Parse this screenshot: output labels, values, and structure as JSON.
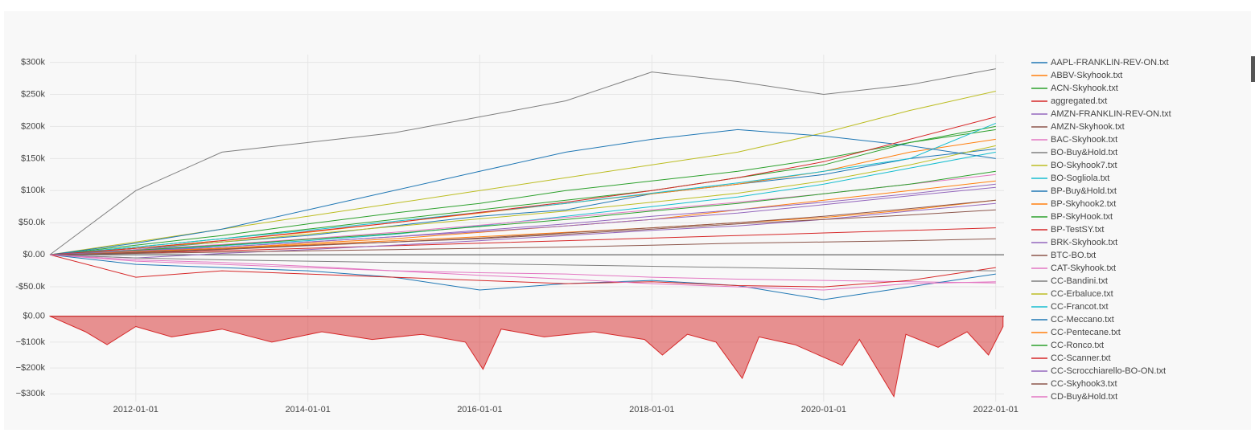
{
  "chart_data": [
    {
      "type": "line",
      "x": [
        "2011-01-01",
        "2012-01-01",
        "2013-01-01",
        "2014-01-01",
        "2015-01-01",
        "2016-01-01",
        "2017-01-01",
        "2018-01-01",
        "2019-01-01",
        "2020-01-01",
        "2021-01-01",
        "2022-01-01"
      ],
      "xlim": [
        "2011-01-01",
        "2022-02-05"
      ],
      "xticks": [
        "2012-01-01",
        "2014-01-01",
        "2016-01-01",
        "2018-01-01",
        "2020-01-01",
        "2022-01-01"
      ],
      "ylim": [
        -85000,
        312000
      ],
      "yticks": [
        {
          "value": -50000,
          "label": "-$50.0k"
        },
        {
          "value": 0,
          "label": "$0.00"
        },
        {
          "value": 50000,
          "label": "$50.0k"
        },
        {
          "value": 100000,
          "label": "$100k"
        },
        {
          "value": 150000,
          "label": "$150k"
        },
        {
          "value": 200000,
          "label": "$200k"
        },
        {
          "value": 250000,
          "label": "$250k"
        },
        {
          "value": 300000,
          "label": "$300k"
        }
      ],
      "grid": true,
      "legend": "right",
      "series": [
        {
          "name": "AAPL-FRANKLIN-REV-ON.txt",
          "color": "#1f77b4",
          "values": [
            0,
            8000,
            20000,
            30000,
            45000,
            60000,
            70000,
            95000,
            110000,
            125000,
            150000,
            165000
          ]
        },
        {
          "name": "ABBV-Skyhook.txt",
          "color": "#ff7f0e",
          "values": [
            0,
            5000,
            10000,
            18000,
            25000,
            35000,
            45000,
            55000,
            70000,
            85000,
            100000,
            115000
          ]
        },
        {
          "name": "ACN-Skyhook.txt",
          "color": "#2ca02c",
          "values": [
            0,
            12000,
            25000,
            40000,
            55000,
            70000,
            85000,
            100000,
            120000,
            140000,
            175000,
            200000
          ]
        },
        {
          "name": "aggregated.txt",
          "color": "#d62728",
          "values": [
            0,
            3000,
            6000,
            10000,
            14000,
            18000,
            22000,
            26000,
            30000,
            34000,
            38000,
            42000
          ]
        },
        {
          "name": "AMZN-FRANKLIN-REV-ON.txt",
          "color": "#9467bd",
          "values": [
            0,
            -5000,
            2000,
            8000,
            15000,
            22000,
            30000,
            38000,
            45000,
            55000,
            68000,
            80000
          ]
        },
        {
          "name": "AMZN-Skyhook.txt",
          "color": "#8c564b",
          "values": [
            0,
            4000,
            9000,
            15000,
            20000,
            25000,
            32000,
            40000,
            48000,
            55000,
            62000,
            70000
          ]
        },
        {
          "name": "BAC-Skyhook.txt",
          "color": "#e377c2",
          "values": [
            0,
            -10000,
            -15000,
            -20000,
            -25000,
            -28000,
            -30000,
            -35000,
            -38000,
            -40000,
            -42000,
            -44000
          ]
        },
        {
          "name": "BO-Buy&Hold.txt",
          "color": "#7f7f7f",
          "values": [
            0,
            100000,
            160000,
            175000,
            190000,
            215000,
            240000,
            285000,
            270000,
            250000,
            265000,
            290000
          ]
        },
        {
          "name": "BO-Skyhook7.txt",
          "color": "#bcbd22",
          "values": [
            0,
            20000,
            40000,
            60000,
            80000,
            100000,
            120000,
            140000,
            160000,
            190000,
            225000,
            255000
          ]
        },
        {
          "name": "BO-Sogliola.txt",
          "color": "#17becf",
          "values": [
            0,
            6000,
            14000,
            22000,
            32000,
            45000,
            60000,
            75000,
            90000,
            110000,
            135000,
            160000
          ]
        },
        {
          "name": "BP-Buy&Hold.txt",
          "color": "#1f77b4",
          "values": [
            0,
            -15000,
            -20000,
            -25000,
            -35000,
            -55000,
            -45000,
            -40000,
            -48000,
            -70000,
            -50000,
            -30000
          ]
        },
        {
          "name": "BP-Skyhook2.txt",
          "color": "#ff7f0e",
          "values": [
            0,
            10000,
            22000,
            35000,
            50000,
            65000,
            80000,
            95000,
            110000,
            130000,
            160000,
            180000
          ]
        },
        {
          "name": "BP-SkyHook.txt",
          "color": "#2ca02c",
          "values": [
            0,
            15000,
            30000,
            48000,
            65000,
            80000,
            100000,
            115000,
            130000,
            150000,
            175000,
            195000
          ]
        },
        {
          "name": "BP-TestSY.txt",
          "color": "#d62728",
          "values": [
            0,
            -35000,
            -25000,
            -30000,
            -35000,
            -40000,
            -45000,
            -42000,
            -48000,
            -50000,
            -40000,
            -20000
          ]
        },
        {
          "name": "BRK-Skyhook.txt",
          "color": "#9467bd",
          "values": [
            0,
            5000,
            12000,
            20000,
            28000,
            38000,
            48000,
            60000,
            70000,
            82000,
            95000,
            110000
          ]
        },
        {
          "name": "BTC-BO.txt",
          "color": "#8c564b",
          "values": [
            0,
            2000,
            4000,
            6000,
            8000,
            10000,
            12000,
            15000,
            18000,
            20000,
            22000,
            25000
          ]
        },
        {
          "name": "CAT-Skyhook.txt",
          "color": "#e377c2",
          "values": [
            0,
            8000,
            16000,
            25000,
            35000,
            46000,
            58000,
            70000,
            82000,
            95000,
            110000,
            125000
          ]
        },
        {
          "name": "CC-Bandini.txt",
          "color": "#7f7f7f",
          "values": [
            0,
            -5000,
            -8000,
            -10000,
            -12000,
            -14000,
            -16000,
            -18000,
            -20000,
            -22000,
            -24000,
            -25000
          ]
        },
        {
          "name": "CC-Erbaluce.txt",
          "color": "#bcbd22",
          "values": [
            0,
            10000,
            20000,
            32000,
            44000,
            56000,
            68000,
            82000,
            96000,
            115000,
            140000,
            170000
          ]
        },
        {
          "name": "CC-Francot.txt",
          "color": "#17becf",
          "values": [
            0,
            12000,
            25000,
            38000,
            52000,
            66000,
            80000,
            96000,
            112000,
            130000,
            150000,
            205000
          ]
        },
        {
          "name": "CC-Meccano.txt",
          "color": "#1f77b4",
          "values": [
            0,
            18000,
            40000,
            70000,
            100000,
            130000,
            160000,
            180000,
            195000,
            185000,
            170000,
            150000
          ]
        },
        {
          "name": "CC-Pentecane.txt",
          "color": "#ff7f0e",
          "values": [
            0,
            5000,
            10000,
            16000,
            22000,
            28000,
            35000,
            42000,
            50000,
            58000,
            70000,
            85000
          ]
        },
        {
          "name": "CC-Ronco.txt",
          "color": "#2ca02c",
          "values": [
            0,
            7000,
            15000,
            24000,
            33000,
            44000,
            55000,
            68000,
            80000,
            95000,
            110000,
            130000
          ]
        },
        {
          "name": "CC-Scanner.txt",
          "color": "#d62728",
          "values": [
            0,
            10000,
            22000,
            36000,
            50000,
            66000,
            82000,
            100000,
            120000,
            145000,
            180000,
            215000
          ]
        },
        {
          "name": "CC-Scrocchiarello-BO-ON.txt",
          "color": "#9467bd",
          "values": [
            0,
            6000,
            12000,
            20000,
            28000,
            36000,
            45000,
            55000,
            65000,
            78000,
            92000,
            105000
          ]
        },
        {
          "name": "CC-Skyhook3.txt",
          "color": "#8c564b",
          "values": [
            0,
            3000,
            8000,
            14000,
            20000,
            26000,
            34000,
            42000,
            50000,
            60000,
            72000,
            85000
          ]
        },
        {
          "name": "CD-Buy&Hold.txt",
          "color": "#e377c2",
          "values": [
            0,
            -8000,
            -12000,
            -18000,
            -25000,
            -32000,
            -38000,
            -45000,
            -50000,
            -55000,
            -45000,
            -42000
          ]
        }
      ]
    },
    {
      "type": "area",
      "x": [
        "2011-01-01",
        "2011-06-01",
        "2011-09-01",
        "2012-01-01",
        "2012-06-01",
        "2013-01-01",
        "2013-08-01",
        "2014-03-01",
        "2014-10-01",
        "2015-05-01",
        "2015-11-01",
        "2016-01-15",
        "2016-04-01",
        "2016-10-01",
        "2017-05-01",
        "2017-12-01",
        "2018-02-15",
        "2018-06-01",
        "2018-10-01",
        "2019-01-20",
        "2019-04-01",
        "2019-09-01",
        "2020-03-20",
        "2020-06-01",
        "2020-10-25",
        "2020-12-15",
        "2021-05-01",
        "2021-09-01",
        "2021-12-01",
        "2022-02-01"
      ],
      "values": [
        0,
        -60000,
        -110000,
        -40000,
        -80000,
        -50000,
        -100000,
        -60000,
        -90000,
        -70000,
        -100000,
        -205000,
        -50000,
        -80000,
        -60000,
        -90000,
        -150000,
        -70000,
        -100000,
        -240000,
        -80000,
        -110000,
        -190000,
        -90000,
        -310000,
        -70000,
        -120000,
        -60000,
        -150000,
        -40000
      ],
      "color": "#d62728",
      "xlim": [
        "2011-01-01",
        "2022-02-05"
      ],
      "xticks": [
        "2012-01-01",
        "2014-01-01",
        "2016-01-01",
        "2018-01-01",
        "2020-01-01",
        "2022-01-01"
      ],
      "ylim": [
        -330000,
        5000
      ],
      "yticks": [
        {
          "value": -300000,
          "label": "−$300k"
        },
        {
          "value": -200000,
          "label": "−$200k"
        },
        {
          "value": -100000,
          "label": "−$100k"
        },
        {
          "value": 0,
          "label": "$0.00"
        }
      ],
      "grid": true
    }
  ]
}
